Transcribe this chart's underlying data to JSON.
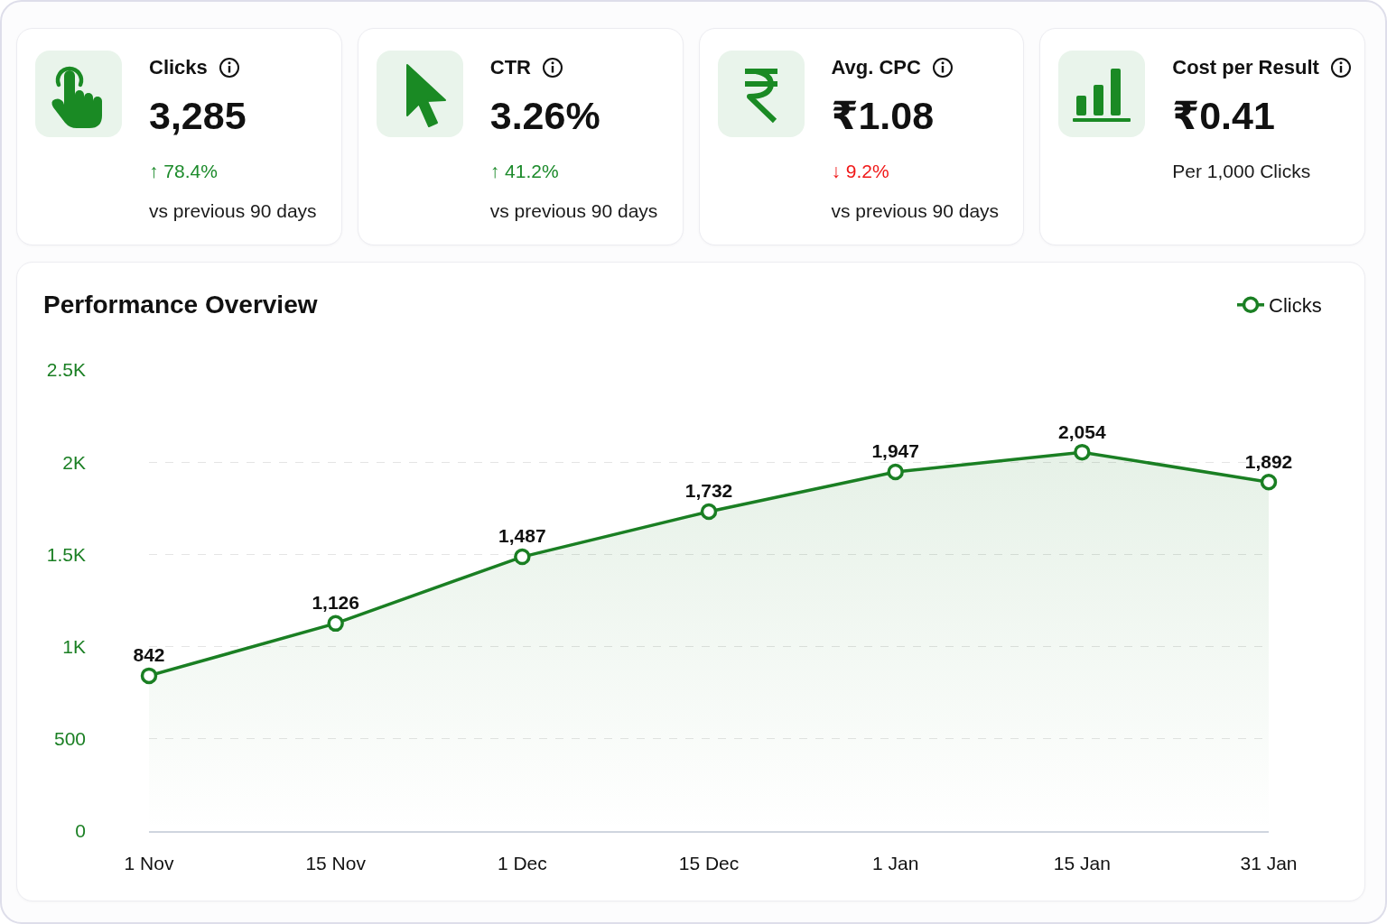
{
  "chart_data": [
    {
      "type": "other",
      "title": "Clicks",
      "annotations": [
        "3,285",
        "↑ 78.4%",
        "vs previous 90 days"
      ],
      "colors": [
        "#111111",
        "#1b8a2a",
        "#1a1a1a"
      ]
    },
    {
      "type": "other",
      "title": "CTR",
      "annotations": [
        "3.26%",
        "↑ 41.2%",
        "vs previous 90 days"
      ],
      "colors": [
        "#111111",
        "#1b8a2a",
        "#1a1a1a"
      ]
    },
    {
      "type": "other",
      "title": "Avg. CPC",
      "annotations": [
        "₹1.08",
        "↓ 9.2%",
        "vs previous 90 days"
      ],
      "colors": [
        "#111111",
        "#f01818",
        "#1a1a1a"
      ]
    },
    {
      "type": "other",
      "title": "Cost per Result",
      "annotations": [
        "₹0.41",
        "Per 1,000 Clicks"
      ],
      "colors": [
        "#111111",
        "#1a1a1a"
      ]
    },
    {
      "type": "area",
      "title": "Performance Overview",
      "categories": [
        "1 Nov",
        "15 Nov",
        "1 Dec",
        "15 Dec",
        "1 Jan",
        "15 Jan",
        "31 Jan"
      ],
      "series": [
        {
          "name": "Clicks",
          "color": "#1a7f23",
          "values": [
            842,
            1126,
            1487,
            1732,
            1947,
            2054,
            1892
          ],
          "value_labels": [
            "842",
            "1,126",
            "1,487",
            "1,732",
            "1,947",
            "2,054",
            "1,892"
          ]
        }
      ],
      "ylim": [
        0,
        2500
      ],
      "yticks": [
        0,
        500,
        {
          "value": 1000,
          "label": "1K"
        },
        {
          "value": 1500,
          "label": "1.5K"
        },
        {
          "value": 2000,
          "label": "2K"
        },
        {
          "value": 2500,
          "label": "2.5K"
        }
      ],
      "grid": "y",
      "legend": "top right",
      "marker": "circle",
      "line_style": "solid"
    }
  ]
}
